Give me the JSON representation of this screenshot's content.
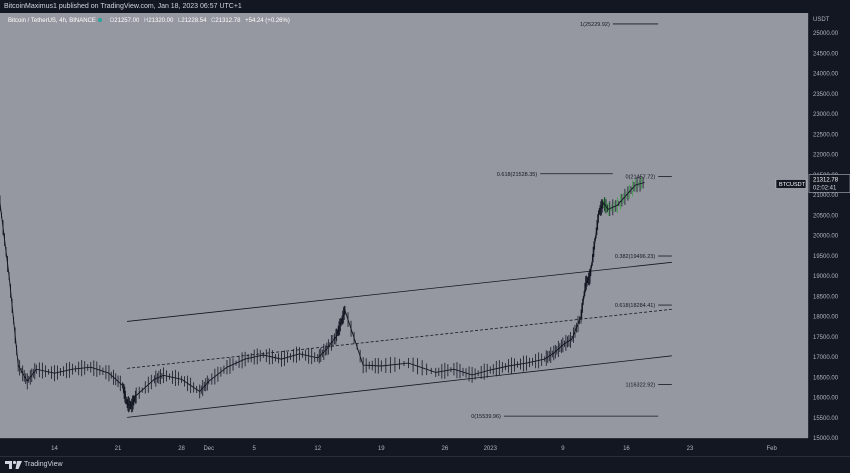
{
  "header": {
    "publish_line": "BitcoinMaximus1 published on TradingView.com, Jan 18, 2023 06:57 UTC+1",
    "symbol": "Bitcoin / TetherUS, 4h, BINANCE",
    "ohlc": [
      {
        "key": "O",
        "value": "21257.00"
      },
      {
        "key": "H",
        "value": "21320.00"
      },
      {
        "key": "L",
        "value": "21228.54"
      },
      {
        "key": "C",
        "value": "21312.78"
      }
    ],
    "change": "+54.24 (+0.26%)"
  },
  "footer": {
    "brand": "TradingView"
  },
  "price_axis": {
    "currency": "USDT"
  },
  "badges": {
    "ticker": "BTCUSDT",
    "price": "21312.78",
    "countdown": "02:02:41"
  },
  "colors": {
    "plot_bg": "#9598a1",
    "page_bg": "#131722",
    "candle": "#131722",
    "accent_green": "#26a69a",
    "last_candles": "#3fa34d",
    "axis_text": "#b2b5be"
  },
  "chart_data": {
    "type": "line",
    "title": "Bitcoin / TetherUS, 4h, BINANCE",
    "xlabel": "",
    "ylabel": "USDT",
    "ylim": [
      15000,
      25500
    ],
    "y_ticks": [
      "15000.00",
      "15500.00",
      "16000.00",
      "16500.00",
      "17000.00",
      "17500.00",
      "18000.00",
      "18500.00",
      "19000.00",
      "19500.00",
      "20000.00",
      "20500.00",
      "21000.00",
      "21500.00",
      "22000.00",
      "22500.00",
      "23000.00",
      "23500.00",
      "24000.00",
      "24500.00",
      "25000.00",
      "25500.00"
    ],
    "x_ticks": [
      "14",
      "21",
      "28",
      "Dec",
      "5",
      "12",
      "19",
      "26",
      "2023",
      "9",
      "16",
      "23",
      "Feb"
    ],
    "x_tick_days": [
      14,
      21,
      28,
      31,
      36,
      43,
      50,
      57,
      62,
      70,
      77,
      84,
      93
    ],
    "x_range_days": [
      8,
      97
    ],
    "x_day_origin": "Nov 0, 2022",
    "series": [
      {
        "name": "",
        "day": [
          8,
          9,
          10,
          11,
          12,
          14,
          16,
          18,
          20,
          21.5,
          22,
          22.5,
          23,
          25,
          26,
          28,
          30,
          31,
          33,
          35,
          37,
          39,
          41,
          43,
          44,
          45,
          45.5,
          46,
          48,
          50,
          53,
          56,
          58,
          60,
          62,
          64,
          66,
          68,
          69,
          70,
          71,
          72,
          72.5,
          73,
          73.5,
          74,
          74.5,
          75,
          76,
          77,
          78,
          79
        ],
        "close": [
          20800,
          19000,
          16800,
          16400,
          16700,
          16600,
          16700,
          16750,
          16600,
          16300,
          15850,
          15800,
          16050,
          16450,
          16550,
          16450,
          16150,
          16400,
          16750,
          16950,
          17050,
          16950,
          17080,
          16980,
          17200,
          17500,
          17800,
          18150,
          16800,
          16780,
          16850,
          16620,
          16700,
          16560,
          16680,
          16780,
          16850,
          16950,
          17100,
          17300,
          17450,
          18000,
          18800,
          19000,
          19800,
          20600,
          20800,
          20650,
          20750,
          21000,
          21250,
          21312.78
        ]
      }
    ],
    "channel_lines": [
      {
        "style": "solid",
        "from": {
          "day": 22,
          "price": 17880
        },
        "to": {
          "day": 82,
          "price": 19340
        }
      },
      {
        "style": "dashed",
        "from": {
          "day": 22,
          "price": 16720
        },
        "to": {
          "day": 82,
          "price": 18180
        }
      },
      {
        "style": "solid",
        "from": {
          "day": 22,
          "price": 15510
        },
        "to": {
          "day": 82,
          "price": 17030
        }
      }
    ],
    "fib_levels": [
      {
        "label": "1(25229.92)",
        "price": 25229.92,
        "from_day": 75.5,
        "to_day": 80.5
      },
      {
        "label": "0.618(21528.35)",
        "price": 21528.35,
        "from_day": 67.5,
        "to_day": 75.5
      },
      {
        "label": "0(21457.72)",
        "price": 21457.72,
        "from_day": 80.5,
        "to_day": 82
      },
      {
        "label": "0.382(19496.23)",
        "price": 19496.23,
        "from_day": 80.5,
        "to_day": 82
      },
      {
        "label": "0.618(18284.41)",
        "price": 18284.41,
        "from_day": 80.5,
        "to_day": 82
      },
      {
        "label": "1(16322.92)",
        "price": 16322.92,
        "from_day": 80.5,
        "to_day": 82
      },
      {
        "label": "0(15539.96)",
        "price": 15539.96,
        "from_day": 63.5,
        "to_day": 80.5
      }
    ],
    "last_price": 21312.78,
    "grid": false
  }
}
